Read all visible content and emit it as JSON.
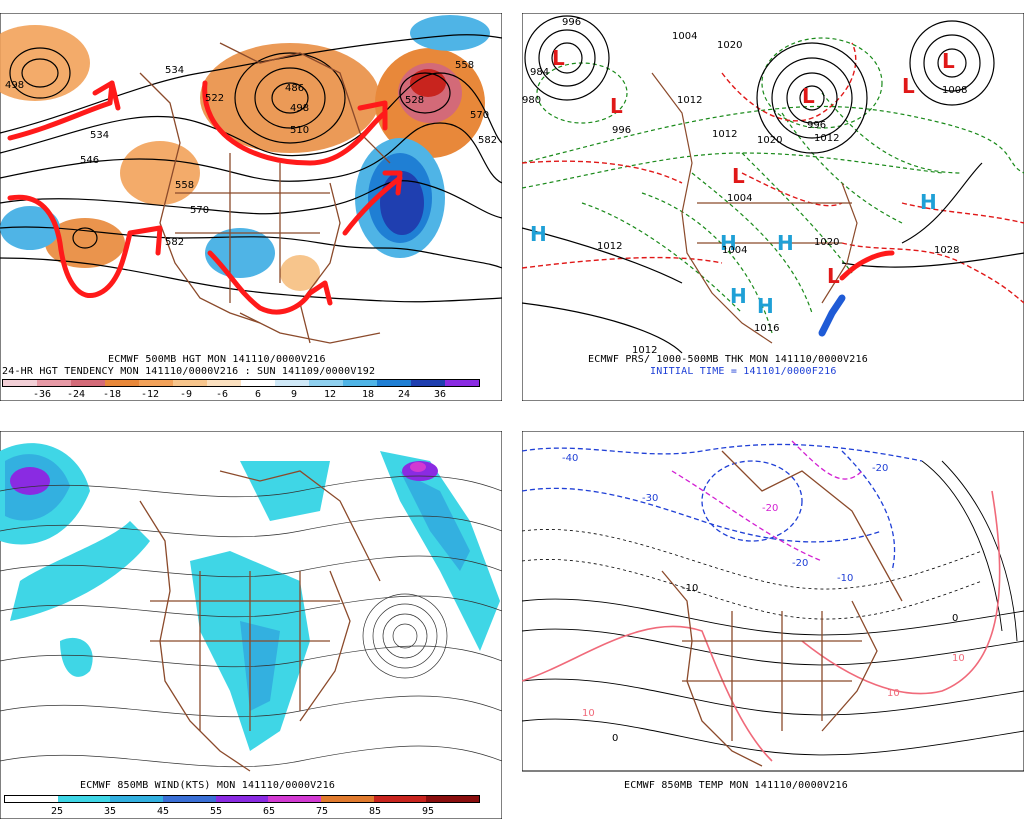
{
  "panels": {
    "top_left": {
      "caption_1": "ECMWF 500MB HGT MON 141110/0000V216",
      "caption_2": "24-HR HGT TENDENCY MON 141110/0000V216 : SUN 141109/0000V192",
      "scale_colors": [
        "#f2cfd6",
        "#e79aa6",
        "#d36a78",
        "#e8883a",
        "#f2a25a",
        "#f7c58c",
        "#fbe0bf",
        "#ffffff",
        "#cfe8f7",
        "#8fd0ef",
        "#4fb4e6",
        "#1f7fd4",
        "#1f3fb0",
        "#8a2be2"
      ],
      "scale_labels": [
        "-36",
        "-24",
        "-18",
        "-12",
        "-9",
        "-6",
        "6",
        "9",
        "12",
        "18",
        "24",
        "36"
      ],
      "contour_labels": [
        "498",
        "534",
        "546",
        "558",
        "570",
        "582",
        "486",
        "498",
        "510",
        "522",
        "534",
        "558",
        "570",
        "582",
        "528"
      ]
    },
    "top_right": {
      "caption_1": "ECMWF PRS/ 1000-500MB THK MON 141110/0000V216",
      "caption_2": "INITIAL TIME = 141101/0000F216",
      "pressure_labels": [
        "996",
        "984",
        "980",
        "996",
        "1004",
        "1012",
        "1020",
        "1012",
        "1020",
        "1004",
        "996",
        "1012",
        "1028",
        "1012",
        "1020",
        "1012",
        "1016",
        "1004",
        "1008"
      ],
      "high_letter": "H",
      "low_letter": "L"
    },
    "bottom_left": {
      "caption_1": "ECMWF 850MB WIND(KTS) MON 141110/0000V216",
      "scale_colors": [
        "#ffffff",
        "#3fd6e6",
        "#33b0e0",
        "#3a6fd6",
        "#8a2be2",
        "#d23ad2",
        "#e07a2e",
        "#c8241e",
        "#8a0e0e"
      ],
      "scale_labels": [
        "25",
        "35",
        "45",
        "55",
        "65",
        "75",
        "85",
        "95"
      ]
    },
    "bottom_right": {
      "caption_1": "ECMWF 850MB TEMP MON 141110/0000V216",
      "temp_labels": [
        "-40",
        "-30",
        "-20",
        "-20",
        "-10",
        "0",
        "10",
        "10",
        "10",
        "0",
        "-10",
        "-20"
      ]
    }
  }
}
